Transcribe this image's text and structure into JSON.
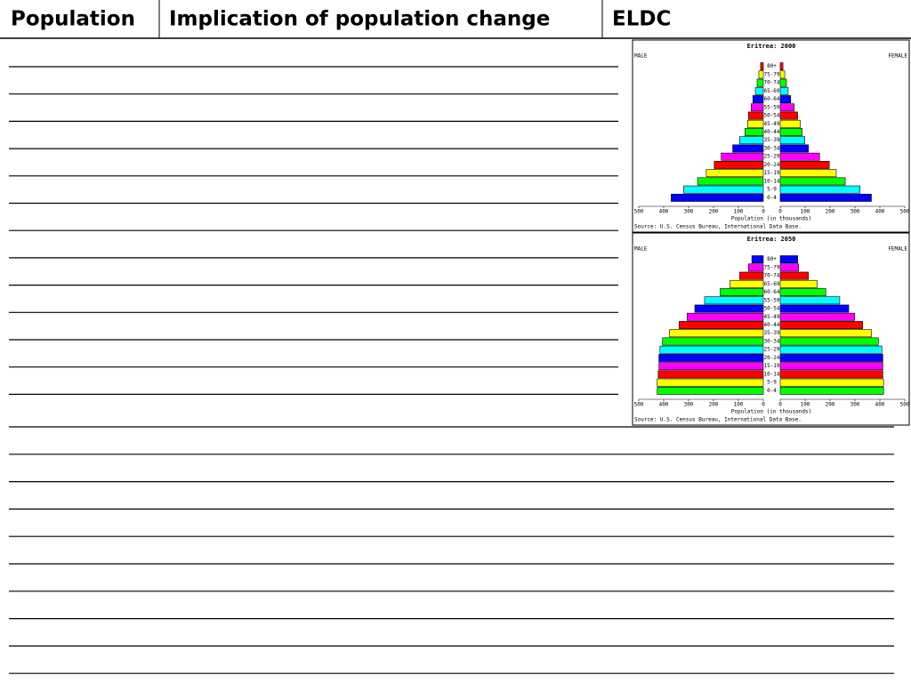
{
  "header": {
    "cells": [
      "Population",
      "Implication of population change",
      "ELDC"
    ]
  },
  "chart_data": [
    {
      "type": "pyramid",
      "title": "Eritrea: 2000",
      "categories": [
        "80+",
        "75-79",
        "70-74",
        "65-69",
        "60-64",
        "55-59",
        "50-54",
        "45-49",
        "40-44",
        "35-39",
        "30-34",
        "25-29",
        "20-24",
        "15-19",
        "10-14",
        "5-9",
        "0-4"
      ],
      "colors": [
        "#ff0000",
        "#ffff00",
        "#00ff00",
        "#00ffff",
        "#0000ff",
        "#ff00ff",
        "#ff0000",
        "#ffff00",
        "#00ff00",
        "#00ffff",
        "#0000ff",
        "#ff00ff",
        "#ff0000",
        "#ffff00",
        "#00ff00",
        "#00ffff",
        "#0000ff"
      ],
      "series": [
        {
          "name": "MALE",
          "values": [
            11,
            18,
            25,
            32,
            42,
            49,
            60,
            63,
            74,
            95,
            123,
            169,
            197,
            229,
            264,
            320,
            370
          ]
        },
        {
          "name": "FEMALE",
          "values": [
            11,
            18,
            25,
            32,
            42,
            56,
            70,
            81,
            88,
            99,
            113,
            158,
            197,
            225,
            261,
            320,
            366
          ]
        }
      ],
      "xlim": [
        0,
        500
      ],
      "xticks": [
        0,
        100,
        200,
        300,
        400,
        500
      ],
      "xlabel": "Population (in thousands)",
      "source": "Source: U.S. Census Bureau, International Data Base."
    },
    {
      "type": "pyramid",
      "title": "Eritrea: 2050",
      "categories": [
        "80+",
        "75-79",
        "70-74",
        "65-69",
        "60-64",
        "55-59",
        "50-54",
        "45-49",
        "40-44",
        "35-39",
        "30-34",
        "25-29",
        "20-24",
        "15-19",
        "10-14",
        "5-9",
        "0-4"
      ],
      "colors": [
        "#0000ff",
        "#ff00ff",
        "#ff0000",
        "#ffff00",
        "#00ff00",
        "#00ffff",
        "#0000ff",
        "#ff00ff",
        "#ff0000",
        "#ffff00",
        "#00ff00",
        "#00ffff",
        "#0000ff",
        "#ff00ff",
        "#ff0000",
        "#ffff00",
        "#00ff00"
      ],
      "series": [
        {
          "name": "MALE",
          "values": [
            46,
            60,
            95,
            134,
            173,
            236,
            275,
            306,
            338,
            377,
            405,
            415,
            419,
            419,
            422,
            426,
            426
          ]
        },
        {
          "name": "FEMALE",
          "values": [
            70,
            74,
            113,
            148,
            183,
            239,
            275,
            299,
            331,
            366,
            394,
            408,
            412,
            412,
            412,
            415,
            415
          ]
        }
      ],
      "xlim": [
        0,
        500
      ],
      "xticks": [
        0,
        100,
        200,
        300,
        400,
        500
      ],
      "xlabel": "Population (in thousands)",
      "source": "Source: U.S. Census Bureau, International Data Base."
    }
  ]
}
